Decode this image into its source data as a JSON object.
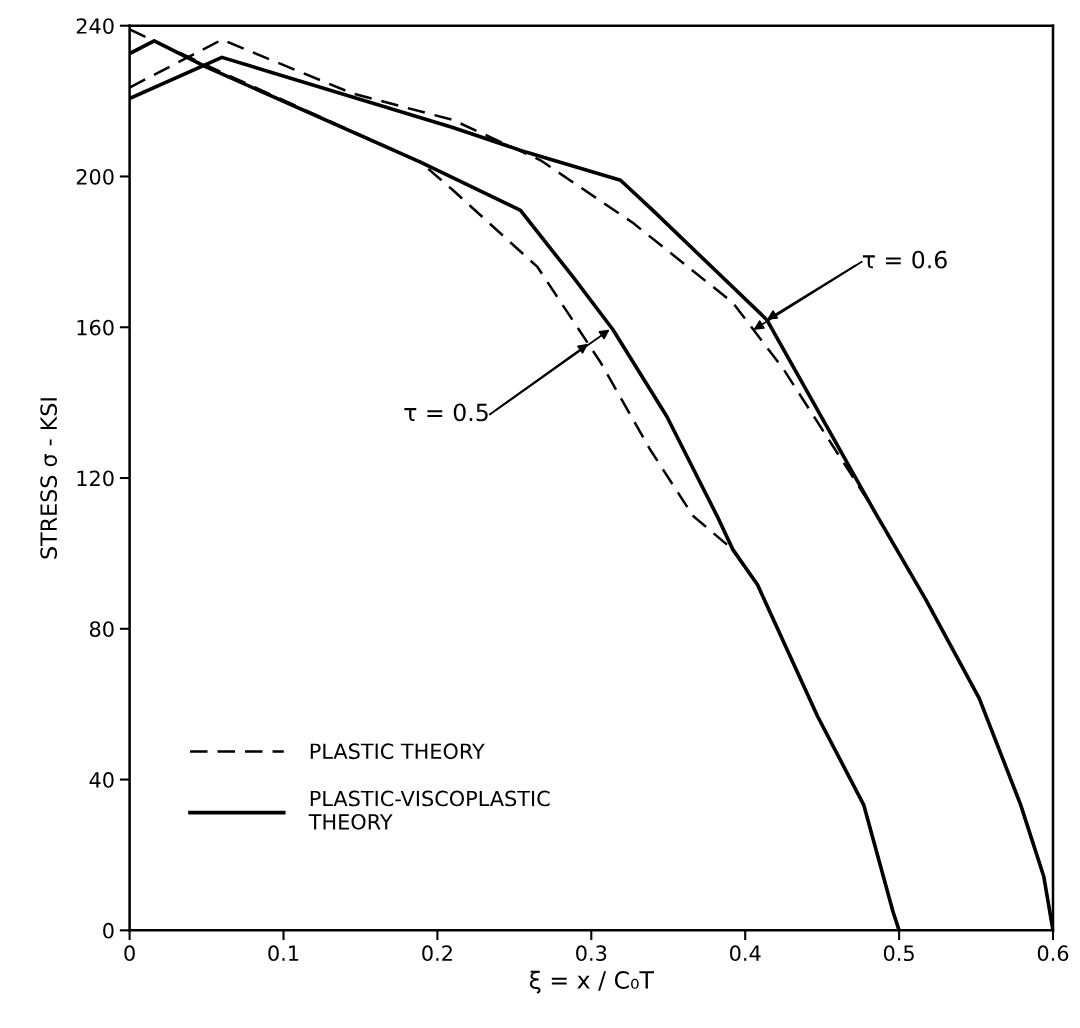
{
  "chart_data": {
    "type": "line",
    "xlabel": "ξ = x / C₀T",
    "ylabel": "STRESS σ - KSI",
    "xlim": [
      0,
      0.6
    ],
    "ylim": [
      0,
      240
    ],
    "xticks": [
      0,
      0.1,
      0.2,
      0.3,
      0.4,
      0.5,
      0.6
    ],
    "yticks": [
      0,
      40,
      80,
      120,
      160,
      200,
      240
    ],
    "grid": false,
    "legend": "bottom left",
    "marker": "none",
    "series": [
      {
        "name": "PLASTIC THEORY",
        "color": "#000000",
        "line_style": "dashed",
        "x": [
          0,
          0.039,
          0.06,
          0.189,
          0.21,
          0.265,
          0.306,
          0.338,
          0.366,
          0.392,
          0.408,
          0.447,
          0.477,
          0.496,
          0.5
        ],
        "values": [
          239,
          231.6,
          227.6,
          203.8,
          196.4,
          176,
          150.7,
          127.7,
          110,
          101,
          91.7,
          56.8,
          33.3,
          5,
          0
        ]
      },
      {
        "name": "PLASTIC-VISCOPLASTIC\nTHEORY",
        "color": "#000000",
        "line_style": "solid",
        "x": [
          0,
          0.016,
          0.05,
          0.189,
          0.254,
          0.288,
          0.314,
          0.349,
          0.382,
          0.392,
          0.408,
          0.447,
          0.477,
          0.496,
          0.5
        ],
        "values": [
          232.6,
          236,
          229,
          203.8,
          191,
          173.4,
          159.4,
          136.4,
          109.7,
          101,
          91.7,
          56.8,
          33.3,
          5,
          0
        ]
      },
      {
        "color": "#000000",
        "line_style": "dashed",
        "x": [
          0,
          0.06,
          0.145,
          0.21,
          0.267,
          0.327,
          0.392,
          0.425,
          0.479,
          0.517,
          0.552,
          0.579,
          0.594,
          0.6
        ],
        "values": [
          223.6,
          236.3,
          222,
          215,
          204.3,
          187.7,
          166.5,
          148.8,
          114.5,
          88,
          61.6,
          33.3,
          14.3,
          0
        ]
      },
      {
        "color": "#000000",
        "line_style": "solid",
        "x": [
          0,
          0.06,
          0.21,
          0.258,
          0.319,
          0.34,
          0.414,
          0.4845,
          0.517,
          0.552,
          0.579,
          0.594,
          0.6
        ],
        "values": [
          220.7,
          231.6,
          213,
          206.4,
          199,
          191,
          162,
          110.8,
          88,
          61.6,
          33.3,
          14.3,
          0
        ]
      }
    ],
    "annotations": [
      {
        "text": "τ = 0.5",
        "x": 0.312,
        "y": 159.4
      },
      {
        "text": "τ = 0.6",
        "x": 0.414,
        "y": 162
      }
    ]
  }
}
